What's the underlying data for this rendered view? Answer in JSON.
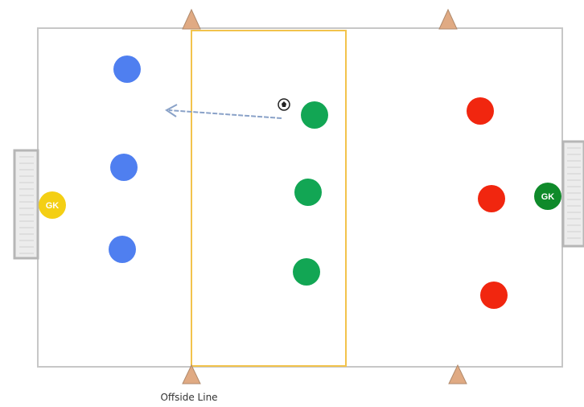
{
  "captions": {
    "offside_line": "Offside Line"
  },
  "goalkeepers": {
    "left_label": "GK",
    "right_label": "GK"
  },
  "colors": {
    "field_border": "#c7c7c7",
    "offside_zone": "#f2c34c",
    "cone": "#e0aa83",
    "cone_stroke": "#b08a6c",
    "team_blue": "#4f7ff0",
    "team_green": "#12a654",
    "team_red": "#f1260f",
    "gk_yellow": "#f4cf14",
    "gk_green": "#0f8a2a",
    "goal_frame": "#b6b6b6",
    "pass_arrow": "#8aa2c8"
  },
  "icons": {
    "ball": "soccer-ball-icon",
    "cone": "cone-icon",
    "goal": "goal-icon",
    "arrow": "pass-arrow-icon"
  },
  "players": {
    "blue_team_count": 3,
    "green_team_count": 3,
    "red_team_count": 3
  }
}
